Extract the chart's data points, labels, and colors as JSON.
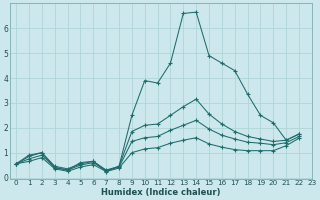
{
  "xlabel": "Humidex (Indice chaleur)",
  "bg_color": "#cce8ec",
  "grid_color": "#b0d4d8",
  "line_color": "#1e6b6b",
  "xlim": [
    -0.5,
    23
  ],
  "ylim": [
    -0.05,
    7
  ],
  "xticks": [
    0,
    1,
    2,
    3,
    4,
    5,
    6,
    7,
    8,
    9,
    10,
    11,
    12,
    13,
    14,
    15,
    16,
    17,
    18,
    19,
    20,
    21,
    22,
    23
  ],
  "yticks": [
    0,
    1,
    2,
    3,
    4,
    5,
    6
  ],
  "series": [
    [
      0.55,
      0.9,
      1.0,
      0.4,
      0.3,
      0.6,
      0.65,
      0.25,
      0.45,
      2.5,
      3.9,
      3.8,
      4.6,
      6.6,
      6.65,
      4.9,
      4.6,
      4.3,
      3.35,
      2.5,
      2.2,
      1.5,
      1.75
    ],
    [
      0.55,
      0.85,
      1.0,
      0.45,
      0.35,
      0.55,
      0.65,
      0.3,
      0.45,
      1.85,
      2.1,
      2.15,
      2.5,
      2.85,
      3.15,
      2.55,
      2.15,
      1.85,
      1.65,
      1.55,
      1.45,
      1.5,
      1.75
    ],
    [
      0.55,
      0.75,
      0.9,
      0.4,
      0.3,
      0.5,
      0.6,
      0.28,
      0.42,
      1.45,
      1.6,
      1.65,
      1.9,
      2.1,
      2.3,
      1.95,
      1.7,
      1.55,
      1.42,
      1.38,
      1.32,
      1.4,
      1.65
    ],
    [
      0.55,
      0.65,
      0.8,
      0.35,
      0.25,
      0.42,
      0.52,
      0.24,
      0.38,
      1.0,
      1.15,
      1.2,
      1.38,
      1.5,
      1.6,
      1.35,
      1.22,
      1.12,
      1.08,
      1.08,
      1.08,
      1.28,
      1.58
    ]
  ]
}
